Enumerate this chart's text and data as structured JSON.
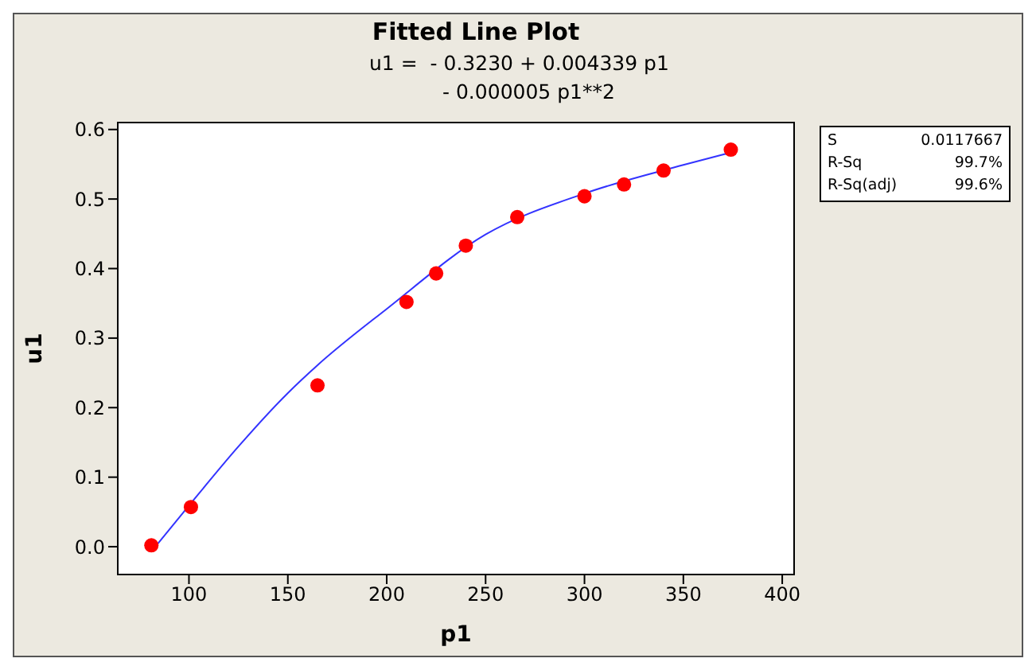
{
  "chart_data": {
    "type": "scatter",
    "title": "Fitted Line Plot",
    "subtitle": "u1 =  - 0.3230 + 0.004339 p1\n- 0.000005 p1**2",
    "xlabel": "p1",
    "ylabel": "u1",
    "annotations": [
      "S 0.0117667",
      "R-Sq 99.7%",
      "R-Sq(adj) 99.6%"
    ],
    "x": [
      81,
      101,
      165,
      210,
      225,
      240,
      266,
      300,
      320,
      340,
      374
    ],
    "series": [
      {
        "color": "#ff0000",
        "marker": "circle",
        "values": [
          0.002,
          0.057,
          0.232,
          0.352,
          0.393,
          0.433,
          0.474,
          0.504,
          0.521,
          0.541,
          0.571
        ]
      },
      {
        "type": "line",
        "color": "#3333ff",
        "marker": "none",
        "line_style": "solid",
        "x": [
          81,
          100,
          125,
          150,
          165,
          200,
          250,
          300,
          350,
          374
        ],
        "values": [
          -0.007,
          0.059,
          0.144,
          0.221,
          0.261,
          0.342,
          0.449,
          0.508,
          0.549,
          0.567
        ]
      }
    ],
    "xlim": [
      64,
      406
    ],
    "xticks": [
      100,
      150,
      200,
      250,
      300,
      350,
      400
    ],
    "ylim": [
      -0.04,
      0.61
    ],
    "yticks": [
      {
        "value": 0,
        "label": "0.0"
      },
      0.1,
      0.2,
      0.3,
      0.4,
      0.5,
      0.6
    ]
  }
}
